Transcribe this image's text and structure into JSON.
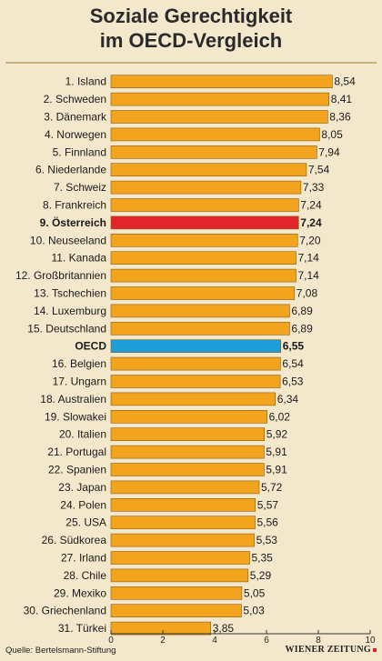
{
  "colors": {
    "background": "#f4e8cc",
    "bar": "#f2a41e",
    "highlight_austria": "#e0262c",
    "highlight_oecd": "#1f9fd9"
  },
  "chart_data": {
    "type": "bar",
    "orientation": "horizontal",
    "title_lines": [
      "Soziale Gerechtigkeit",
      "im OECD-Vergleich"
    ],
    "categories": [
      "1. Island",
      "2. Schweden",
      "3. Dänemark",
      "4. Norwegen",
      "5. Finnland",
      "6. Niederlande",
      "7. Schweiz",
      "8. Frankreich",
      "9. Österreich",
      "10. Neuseeland",
      "11. Kanada",
      "12. Großbritannien",
      "13. Tschechien",
      "14. Luxemburg",
      "15. Deutschland",
      "OECD",
      "16. Belgien",
      "17. Ungarn",
      "18. Australien",
      "19. Slowakei",
      "20. Italien",
      "21. Portugal",
      "22. Spanien",
      "23. Japan",
      "24. Polen",
      "25. USA",
      "26. Südkorea",
      "27. Irland",
      "28. Chile",
      "29. Mexiko",
      "30. Griechenland",
      "31. Türkei"
    ],
    "values": [
      8.54,
      8.41,
      8.36,
      8.05,
      7.94,
      7.54,
      7.33,
      7.24,
      7.24,
      7.2,
      7.14,
      7.14,
      7.08,
      6.89,
      6.89,
      6.55,
      6.54,
      6.53,
      6.34,
      6.02,
      5.92,
      5.91,
      5.91,
      5.72,
      5.57,
      5.56,
      5.53,
      5.35,
      5.29,
      5.05,
      5.03,
      3.85
    ],
    "value_labels": [
      "8,54",
      "8,41",
      "8,36",
      "8,05",
      "7,94",
      "7,54",
      "7,33",
      "7,24",
      "7,24",
      "7,20",
      "7,14",
      "7,14",
      "7,08",
      "6,89",
      "6,89",
      "6,55",
      "6,54",
      "6,53",
      "6,34",
      "6,02",
      "5,92",
      "5,91",
      "5,91",
      "5,72",
      "5,57",
      "5,56",
      "5,53",
      "5,35",
      "5,29",
      "5,05",
      "5,03",
      "3,85"
    ],
    "highlighted": {
      "9. Österreich": "highlight_austria",
      "OECD": "highlight_oecd"
    },
    "bold_labels": [
      "9. Österreich",
      "OECD"
    ],
    "xlim": [
      0,
      10
    ],
    "x_ticks": [
      0,
      2,
      4,
      6,
      8,
      10
    ],
    "x_tick_labels": [
      "0",
      "2",
      "4",
      "6",
      "8",
      "10"
    ],
    "grid": false,
    "legend": false
  },
  "footer": {
    "source": "Quelle: Bertelsmann-Stiftung",
    "logo_text": "WIENER ZEITUNG"
  }
}
